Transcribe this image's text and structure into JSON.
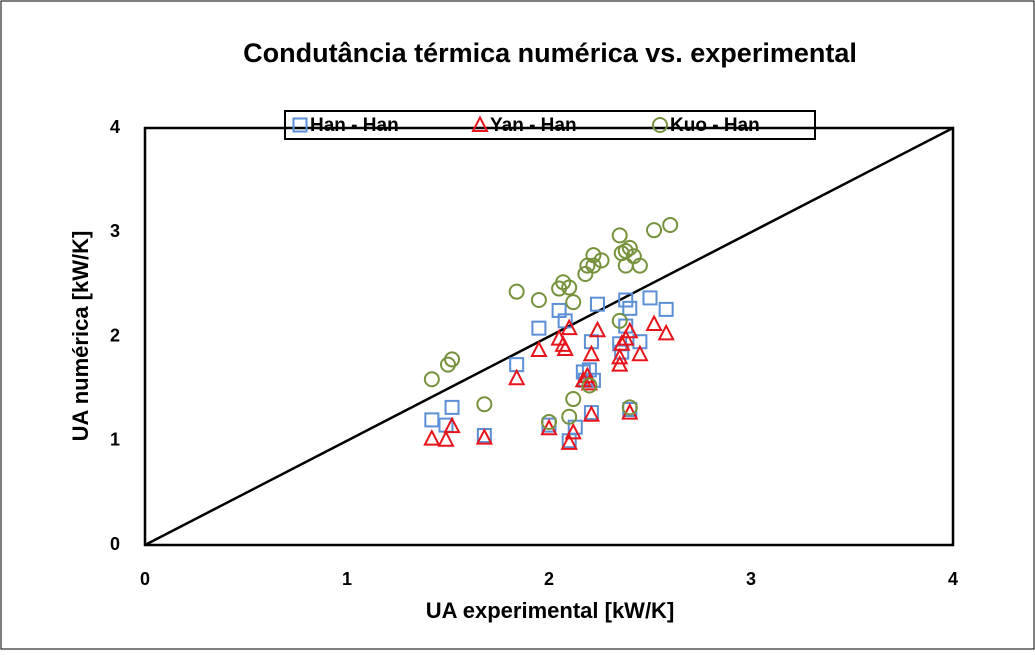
{
  "chart_data": {
    "type": "scatter",
    "title": "Condutância térmica numérica vs. experimental",
    "x_label": "UA experimental [kW/K]",
    "y_label": "UA numérica [kW/K]",
    "xlim": [
      0,
      4
    ],
    "ylim": [
      0,
      4
    ],
    "xticks": [
      0,
      1,
      2,
      3,
      4
    ],
    "yticks": [
      0,
      1,
      2,
      3,
      4
    ],
    "grid": false,
    "legend": "top",
    "series": [
      {
        "name": "Han - Han",
        "color": "#5b8fd6",
        "marker": "square",
        "x": [
          1.42,
          1.49,
          1.52,
          1.68,
          1.84,
          1.95,
          2.05,
          2.08,
          2.24,
          2.38,
          2.4,
          2.5,
          2.58,
          2.21,
          2.35,
          2.38,
          2.45,
          2.17,
          2.2,
          2.18,
          2.22,
          2.36,
          2.0,
          2.13,
          2.21,
          2.4,
          2.1
        ],
        "values": [
          1.2,
          1.15,
          1.32,
          1.05,
          1.73,
          2.08,
          2.25,
          2.15,
          2.31,
          2.35,
          2.27,
          2.37,
          2.26,
          1.95,
          1.93,
          2.1,
          1.95,
          1.66,
          1.68,
          1.58,
          1.58,
          1.85,
          1.15,
          1.13,
          1.27,
          1.3,
          1.0
        ]
      },
      {
        "name": "Yan - Han",
        "color": "#e8141b",
        "marker": "triangle",
        "x": [
          1.42,
          1.49,
          1.52,
          1.68,
          1.84,
          1.95,
          2.05,
          2.07,
          2.08,
          2.1,
          2.24,
          2.21,
          2.35,
          2.35,
          2.36,
          2.38,
          2.4,
          2.45,
          2.52,
          2.58,
          2.17,
          2.19,
          2.2,
          2.0,
          2.1,
          2.12,
          2.21,
          2.4
        ],
        "values": [
          1.02,
          1.01,
          1.14,
          1.03,
          1.6,
          1.87,
          1.98,
          1.92,
          1.88,
          2.08,
          2.06,
          1.83,
          1.73,
          1.8,
          1.93,
          1.98,
          2.05,
          1.83,
          2.12,
          2.03,
          1.58,
          1.62,
          1.55,
          1.12,
          0.98,
          1.08,
          1.25,
          1.27
        ]
      },
      {
        "name": "Kuo - Han",
        "color": "#76923c",
        "marker": "circle",
        "x": [
          1.42,
          1.5,
          1.52,
          1.68,
          1.84,
          1.95,
          2.05,
          2.07,
          2.1,
          2.12,
          2.18,
          2.19,
          2.22,
          2.22,
          2.26,
          2.35,
          2.36,
          2.38,
          2.4,
          2.42,
          2.38,
          2.45,
          2.52,
          2.6,
          2.35,
          2.12,
          2.2,
          2.0,
          2.1,
          2.4
        ],
        "values": [
          1.59,
          1.73,
          1.78,
          1.35,
          2.43,
          2.35,
          2.46,
          2.52,
          2.47,
          2.33,
          2.6,
          2.68,
          2.78,
          2.68,
          2.73,
          2.97,
          2.8,
          2.82,
          2.85,
          2.77,
          2.68,
          2.68,
          3.02,
          3.07,
          2.15,
          1.4,
          1.53,
          1.18,
          1.23,
          1.32
        ]
      }
    ]
  }
}
